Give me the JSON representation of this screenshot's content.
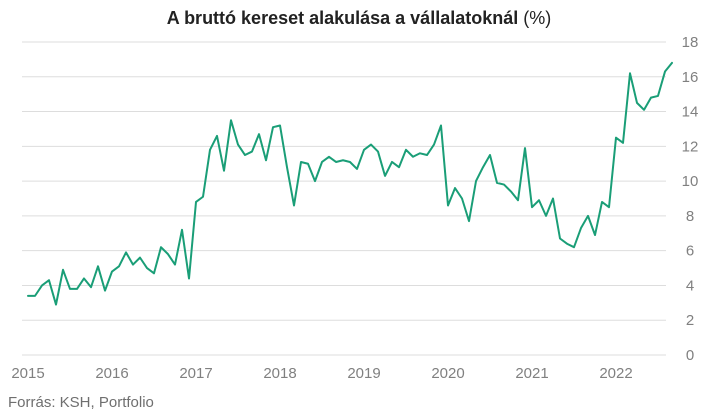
{
  "chart_data": {
    "type": "line",
    "title": "A bruttó kereset alakulása a vállalatoknál",
    "title_unit": "(%)",
    "source": "Forrás: KSH, Portfolio",
    "xlabel": "",
    "ylabel": "",
    "x_ticks": [
      "2015",
      "2016",
      "2017",
      "2018",
      "2019",
      "2020",
      "2021",
      "2022"
    ],
    "y_ticks": [
      "0",
      "2",
      "4",
      "6",
      "8",
      "10",
      "12",
      "14",
      "16",
      "18"
    ],
    "xlim": [
      "2015-01",
      "2022-09"
    ],
    "ylim": [
      0,
      18
    ],
    "y_axis_position": "right",
    "grid": "horizontal",
    "line_color": "#1a9e77",
    "grid_color": "#dddddd",
    "series": [
      {
        "x": [
          "2015-01",
          "2015-02",
          "2015-03",
          "2015-04",
          "2015-05",
          "2015-06",
          "2015-07",
          "2015-08",
          "2015-09",
          "2015-10",
          "2015-11",
          "2015-12",
          "2016-01",
          "2016-02",
          "2016-03",
          "2016-04",
          "2016-05",
          "2016-06",
          "2016-07",
          "2016-08",
          "2016-09",
          "2016-10",
          "2016-11",
          "2016-12",
          "2017-01",
          "2017-02",
          "2017-03",
          "2017-04",
          "2017-05",
          "2017-06",
          "2017-07",
          "2017-08",
          "2017-09",
          "2017-10",
          "2017-11",
          "2017-12",
          "2018-01",
          "2018-02",
          "2018-03",
          "2018-04",
          "2018-05",
          "2018-06",
          "2018-07",
          "2018-08",
          "2018-09",
          "2018-10",
          "2018-11",
          "2018-12",
          "2019-01",
          "2019-02",
          "2019-03",
          "2019-04",
          "2019-05",
          "2019-06",
          "2019-07",
          "2019-08",
          "2019-09",
          "2019-10",
          "2019-11",
          "2019-12",
          "2020-01",
          "2020-02",
          "2020-03",
          "2020-04",
          "2020-05",
          "2020-06",
          "2020-07",
          "2020-08",
          "2020-09",
          "2020-10",
          "2020-11",
          "2020-12",
          "2021-01",
          "2021-02",
          "2021-03",
          "2021-04",
          "2021-05",
          "2021-06",
          "2021-07",
          "2021-08",
          "2021-09",
          "2021-10",
          "2021-11",
          "2021-12",
          "2022-01",
          "2022-02",
          "2022-03",
          "2022-04",
          "2022-05",
          "2022-06",
          "2022-07",
          "2022-08",
          "2022-09"
        ],
        "values": [
          3.4,
          3.4,
          4.0,
          4.3,
          2.9,
          4.9,
          3.8,
          3.8,
          4.4,
          3.9,
          5.1,
          3.7,
          4.8,
          5.1,
          5.9,
          5.2,
          5.6,
          5.0,
          4.7,
          6.2,
          5.8,
          5.2,
          7.2,
          4.4,
          8.8,
          9.1,
          11.8,
          12.6,
          10.6,
          13.5,
          12.1,
          11.5,
          11.7,
          12.7,
          11.2,
          13.1,
          13.2,
          10.8,
          8.6,
          11.1,
          11.0,
          10.0,
          11.1,
          11.4,
          11.1,
          11.2,
          11.1,
          10.7,
          11.8,
          12.1,
          11.7,
          10.3,
          11.1,
          10.8,
          11.8,
          11.4,
          11.6,
          11.5,
          12.1,
          13.2,
          8.6,
          9.6,
          9.0,
          7.7,
          10.0,
          10.8,
          11.5,
          9.9,
          9.8,
          9.4,
          8.9,
          11.9,
          8.5,
          8.9,
          8.0,
          9.0,
          6.7,
          6.4,
          6.2,
          7.3,
          8.0,
          6.9,
          8.8,
          8.5,
          12.5,
          12.2,
          16.2,
          14.5,
          14.1,
          14.8,
          14.9,
          16.3,
          16.8
        ]
      }
    ]
  }
}
